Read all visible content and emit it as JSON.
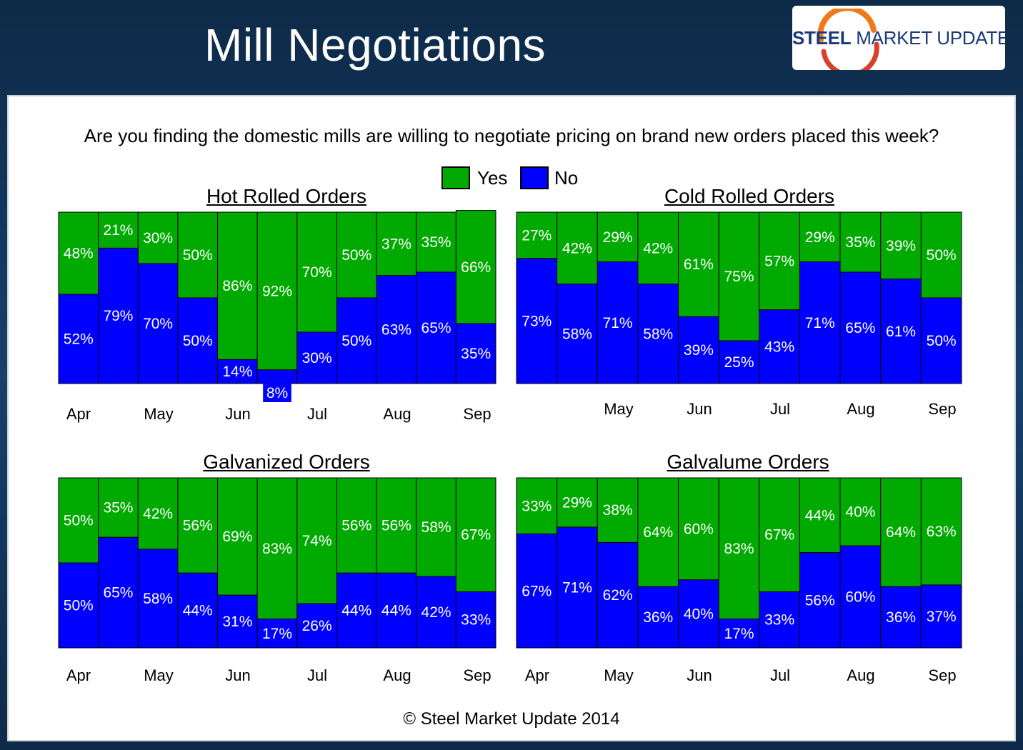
{
  "header": {
    "title": "Mill Negotiations"
  },
  "logo": {
    "text_bold": "STEEL",
    "text_rest": "MARKET UPDATE"
  },
  "question": "Are you finding the domestic mills are willing to negotiate pricing on brand new orders placed this week?",
  "legend": [
    {
      "label": "Yes",
      "color": "#00aa00"
    },
    {
      "label": "No",
      "color": "#0000ff"
    }
  ],
  "colors": {
    "yes": "#00aa00",
    "no": "#0000ff",
    "border": "#000000"
  },
  "chart_data": [
    {
      "type": "bar",
      "stacked": true,
      "title": "Hot Rolled Orders",
      "x_tick_labels": [
        "Apr",
        "May",
        "Jun",
        "Jul",
        "Aug",
        "Sep"
      ],
      "ylim": [
        0,
        100
      ],
      "series": [
        {
          "name": "No",
          "values": [
            52,
            79,
            70,
            50,
            14,
            8,
            30,
            50,
            63,
            65,
            35
          ]
        },
        {
          "name": "Yes",
          "values": [
            48,
            21,
            30,
            50,
            86,
            92,
            70,
            50,
            37,
            35,
            66
          ]
        }
      ]
    },
    {
      "type": "bar",
      "stacked": true,
      "title": "Cold Rolled Orders",
      "x_tick_labels": [
        "May",
        "Jun",
        "Jul",
        "Aug",
        "Sep"
      ],
      "ylim": [
        0,
        100
      ],
      "series": [
        {
          "name": "No",
          "values": [
            73,
            58,
            71,
            58,
            39,
            25,
            43,
            71,
            65,
            61,
            50
          ]
        },
        {
          "name": "Yes",
          "values": [
            27,
            42,
            29,
            42,
            61,
            75,
            57,
            29,
            35,
            39,
            50
          ]
        }
      ]
    },
    {
      "type": "bar",
      "stacked": true,
      "title": "Galvanized Orders",
      "x_tick_labels": [
        "Apr",
        "May",
        "Jun",
        "Jul",
        "Aug",
        "Sep"
      ],
      "ylim": [
        0,
        100
      ],
      "series": [
        {
          "name": "No",
          "values": [
            50,
            65,
            58,
            44,
            31,
            17,
            26,
            44,
            44,
            42,
            33
          ]
        },
        {
          "name": "Yes",
          "values": [
            50,
            35,
            42,
            56,
            69,
            83,
            74,
            56,
            56,
            58,
            67
          ]
        }
      ]
    },
    {
      "type": "bar",
      "stacked": true,
      "title": "Galvalume Orders",
      "x_tick_labels": [
        "Apr",
        "May",
        "Jun",
        "Jul",
        "Aug",
        "Sep"
      ],
      "ylim": [
        0,
        100
      ],
      "series": [
        {
          "name": "No",
          "values": [
            67,
            71,
            62,
            36,
            40,
            17,
            33,
            56,
            60,
            36,
            37
          ]
        },
        {
          "name": "Yes",
          "values": [
            33,
            29,
            38,
            64,
            60,
            83,
            67,
            44,
            40,
            64,
            63
          ]
        }
      ]
    }
  ],
  "copyright": "© Steel Market Update 2014"
}
